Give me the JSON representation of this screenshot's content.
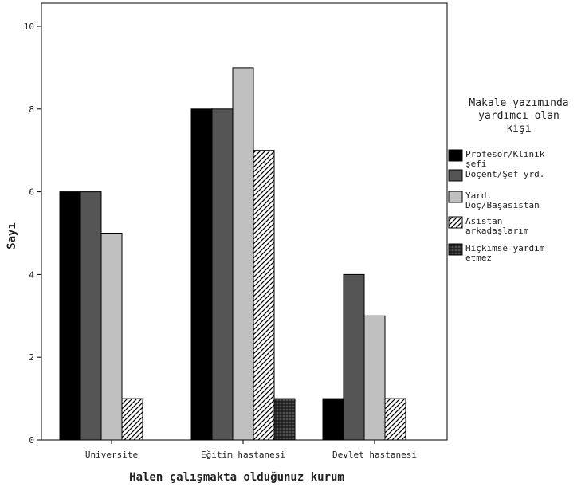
{
  "chart_data": {
    "type": "bar",
    "xlabel": "Halen çalışmakta olduğunuz kurum",
    "ylabel": "Sayı",
    "ylim": [
      0,
      10
    ],
    "yticks": [
      0,
      2,
      4,
      6,
      8,
      10
    ],
    "grid": false,
    "legend_position": "right",
    "legend_title_lines": [
      "Makale yazımında",
      "yardımcı olan",
      "kişi"
    ],
    "categories": [
      "Üniversite",
      "Eğitim hastanesi",
      "Devlet hastanesi"
    ],
    "series": [
      {
        "name": "Profesör/Klinik şefi",
        "label_lines": [
          "Profesör/Klinik",
          "şefi"
        ],
        "fill": "#000000",
        "pattern": "solid",
        "values": [
          6,
          8,
          1
        ]
      },
      {
        "name": "Doçent/Şef yrd.",
        "label_lines": [
          "Doçent/Şef yrd."
        ],
        "fill": "#555555",
        "pattern": "solid",
        "values": [
          6,
          8,
          4
        ]
      },
      {
        "name": "Yard. Doç/Başasistan",
        "label_lines": [
          "Yard.",
          "Doç/Başasistan"
        ],
        "fill": "#c0c0c0",
        "pattern": "solid",
        "values": [
          5,
          9,
          3
        ]
      },
      {
        "name": "Asistan arkadaşlarım",
        "label_lines": [
          "Asistan",
          "arkadaşlarım"
        ],
        "fill": "#ffffff",
        "pattern": "diagonal",
        "values": [
          1,
          7,
          1
        ]
      },
      {
        "name": "Hiçkimse yardım etmez",
        "label_lines": [
          "Hiçkimse yardım",
          "etmez"
        ],
        "fill": "#333333",
        "pattern": "dense",
        "values": [
          0,
          1,
          0
        ]
      }
    ]
  }
}
